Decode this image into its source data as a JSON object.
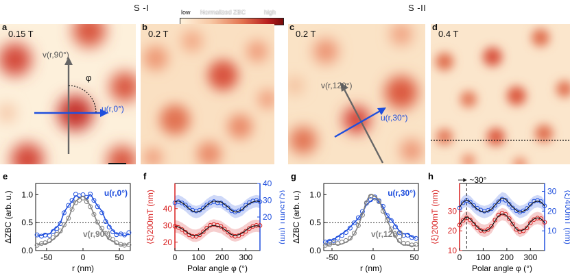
{
  "figure": {
    "group_left": "S -I",
    "group_right": "S -II",
    "colorbar": {
      "low": "low",
      "title": "Normalized ZBC",
      "high": "high",
      "colors": [
        "#fff2dc",
        "#f7c7a3",
        "#e3734f",
        "#b81f1f",
        "#7a0a0a"
      ]
    }
  },
  "maps": [
    {
      "letter": "a",
      "field": "0.15 T",
      "annotations": {
        "v_label": "v(r,90°)",
        "u_label": "u(r,0°)",
        "phi": "φ"
      }
    },
    {
      "letter": "b",
      "field": "0.2 T"
    },
    {
      "letter": "c",
      "field": "0.2 T",
      "annotations": {
        "v_label": "v(r,120°)",
        "u_label": "u(r,30°)"
      }
    },
    {
      "letter": "d",
      "field": "0.4 T"
    }
  ],
  "plots": {
    "e": {
      "letter": "e",
      "ylabel": "ΔZBC (arb. u.)",
      "xlabel": "r (nm)",
      "u_label": "u(r,0°)",
      "v_label": "v(r,90°)"
    },
    "f": {
      "letter": "f",
      "xlabel": "Polar angle φ (°)",
      "yleft_label": "⟨ξ⟩200mT (nm)",
      "yright_label": "⟨ξ⟩150mT (nm)"
    },
    "g": {
      "letter": "g",
      "ylabel": "ΔZBC (arb. u.)",
      "xlabel": "r (nm)",
      "u_label": "u(r,30°)",
      "v_label": "v(r,120°)"
    },
    "h": {
      "letter": "h",
      "xlabel": "Polar angle φ (°)",
      "yleft_label": "⟨ξ⟩200mT (nm)",
      "yright_label": "⟨ξ⟩400mT (nm)",
      "annotation": "~30°"
    }
  },
  "chart_data": [
    {
      "panel": "e",
      "type": "line",
      "xlim": [
        -65,
        65
      ],
      "ylim": [
        0,
        1.2
      ],
      "xticks": [
        -50,
        0,
        50
      ],
      "yticks": [
        0.0,
        0.5,
        1.0
      ],
      "reference_line": 0.5,
      "series": [
        {
          "name": "u(r,0°)",
          "color": "#1f4fdd",
          "x": [
            -63,
            -57,
            -52,
            -46,
            -41,
            -36,
            -31,
            -26,
            -20,
            -15,
            -10,
            -5,
            0,
            5,
            10,
            15,
            20,
            26,
            31,
            36,
            41,
            46,
            52,
            57,
            63
          ],
          "y": [
            0.28,
            0.27,
            0.3,
            0.3,
            0.37,
            0.42,
            0.5,
            0.68,
            0.8,
            0.88,
            0.98,
            0.95,
            0.97,
            0.93,
            1.0,
            0.9,
            0.8,
            0.7,
            0.55,
            0.45,
            0.36,
            0.3,
            0.3,
            0.27,
            0.3
          ]
        },
        {
          "name": "v(r,90°)",
          "color": "#808080",
          "x": [
            -63,
            -57,
            -52,
            -46,
            -41,
            -36,
            -31,
            -26,
            -20,
            -15,
            -10,
            -5,
            0,
            5,
            10,
            15,
            20,
            26,
            31,
            36,
            41,
            46,
            52,
            57,
            63
          ],
          "y": [
            0.1,
            0.12,
            0.12,
            0.15,
            0.2,
            0.26,
            0.33,
            0.45,
            0.58,
            0.75,
            0.88,
            0.93,
            0.97,
            0.9,
            0.8,
            0.65,
            0.5,
            0.38,
            0.28,
            0.2,
            0.17,
            0.12,
            0.1,
            0.1,
            0.12
          ]
        }
      ]
    },
    {
      "panel": "f",
      "type": "line",
      "xlim": [
        0,
        360
      ],
      "xticks": [
        0,
        100,
        200,
        300
      ],
      "y_left": {
        "range": [
          15,
          55
        ],
        "ticks": [
          20,
          30,
          40
        ]
      },
      "y_right": {
        "range": [
          0,
          40
        ],
        "ticks": [
          20,
          30,
          40
        ]
      },
      "series": [
        {
          "name": "⟨ξ⟩200mT",
          "axis": "left",
          "color": "#d81e1e",
          "x": [
            0,
            15,
            30,
            45,
            60,
            75,
            90,
            105,
            120,
            135,
            150,
            165,
            180,
            195,
            210,
            225,
            240,
            255,
            270,
            285,
            300,
            315,
            330,
            345,
            360
          ],
          "y": [
            29.5,
            29,
            28,
            26.5,
            25,
            24,
            23.8,
            24.5,
            26,
            28,
            29.5,
            30,
            29.5,
            29,
            27.5,
            26,
            24.5,
            24,
            24.5,
            25.5,
            27,
            28.5,
            29.5,
            29.8,
            29.5
          ]
        },
        {
          "name": "⟨ξ⟩150mT",
          "axis": "right",
          "color": "#1f4fdd",
          "x": [
            0,
            15,
            30,
            45,
            60,
            75,
            90,
            105,
            120,
            135,
            150,
            165,
            180,
            195,
            210,
            225,
            240,
            255,
            270,
            285,
            300,
            315,
            330,
            345,
            360
          ],
          "y": [
            29,
            29.5,
            28.5,
            27,
            25,
            23.5,
            23,
            23.5,
            25,
            27,
            28.5,
            29.5,
            29,
            29,
            27.5,
            26,
            24,
            23,
            23.5,
            24.5,
            26.5,
            28,
            29,
            29.5,
            29
          ]
        }
      ]
    },
    {
      "panel": "g",
      "type": "line",
      "xlim": [
        -60,
        55
      ],
      "ylim": [
        0,
        1.2
      ],
      "xticks": [
        -50,
        0,
        50
      ],
      "yticks": [
        0.0,
        0.5,
        1.0
      ],
      "reference_line": 0.5,
      "series": [
        {
          "name": "u(r,30°)",
          "color": "#1f4fdd",
          "x": [
            -58,
            -53,
            -48,
            -43,
            -38,
            -33,
            -28,
            -23,
            -18,
            -13,
            -8,
            -3,
            2,
            7,
            12,
            17,
            22,
            27,
            32,
            37,
            42,
            47,
            52
          ],
          "y": [
            0.15,
            0.18,
            0.2,
            0.25,
            0.3,
            0.35,
            0.42,
            0.5,
            0.58,
            0.68,
            0.82,
            0.88,
            0.93,
            0.87,
            0.78,
            0.63,
            0.55,
            0.45,
            0.35,
            0.3,
            0.3,
            0.25,
            0.22
          ]
        },
        {
          "name": "v(r,120°)",
          "color": "#808080",
          "x": [
            -58,
            -53,
            -48,
            -43,
            -38,
            -33,
            -28,
            -23,
            -18,
            -13,
            -8,
            -3,
            2,
            7,
            12,
            17,
            22,
            27,
            32,
            37,
            42,
            47,
            52
          ],
          "y": [
            0.1,
            0.1,
            0.12,
            0.1,
            0.12,
            0.15,
            0.2,
            0.3,
            0.45,
            0.65,
            0.88,
            1.0,
            0.97,
            0.9,
            0.72,
            0.55,
            0.38,
            0.25,
            0.15,
            0.1,
            0.1,
            0.08,
            0.1
          ]
        }
      ]
    },
    {
      "panel": "h",
      "type": "line",
      "xlim": [
        0,
        360
      ],
      "xticks": [
        0,
        100,
        200,
        300
      ],
      "y_left": {
        "range": [
          10,
          44
        ],
        "ticks": [
          10,
          20,
          30
        ]
      },
      "y_right": {
        "range": [
          0,
          34
        ],
        "ticks": [
          10,
          20,
          30
        ]
      },
      "marker_angle": 30,
      "series": [
        {
          "name": "⟨ξ⟩200mT",
          "axis": "left",
          "color": "#d81e1e",
          "x": [
            0,
            15,
            30,
            45,
            60,
            75,
            90,
            105,
            120,
            135,
            150,
            165,
            180,
            195,
            210,
            225,
            240,
            255,
            270,
            285,
            300,
            315,
            330,
            345,
            360
          ],
          "y": [
            23,
            25.5,
            27,
            26,
            24,
            22,
            20.5,
            20,
            20.5,
            22,
            25,
            27.5,
            28.5,
            28,
            26,
            23.5,
            21,
            20,
            20.5,
            22,
            24.5,
            26,
            26.5,
            26,
            24
          ]
        },
        {
          "name": "⟨ξ⟩400mT",
          "axis": "right",
          "color": "#1f4fdd",
          "x": [
            0,
            15,
            30,
            45,
            60,
            75,
            90,
            105,
            120,
            135,
            150,
            165,
            180,
            195,
            210,
            225,
            240,
            255,
            270,
            285,
            300,
            315,
            330,
            345,
            360
          ],
          "y": [
            22,
            24.5,
            25.5,
            24.5,
            22.5,
            21,
            20,
            19.5,
            20,
            21,
            23,
            25,
            26.5,
            26,
            24,
            22,
            20.5,
            19.5,
            20,
            21,
            23,
            24.5,
            25,
            24.5,
            22.5
          ]
        }
      ]
    }
  ]
}
